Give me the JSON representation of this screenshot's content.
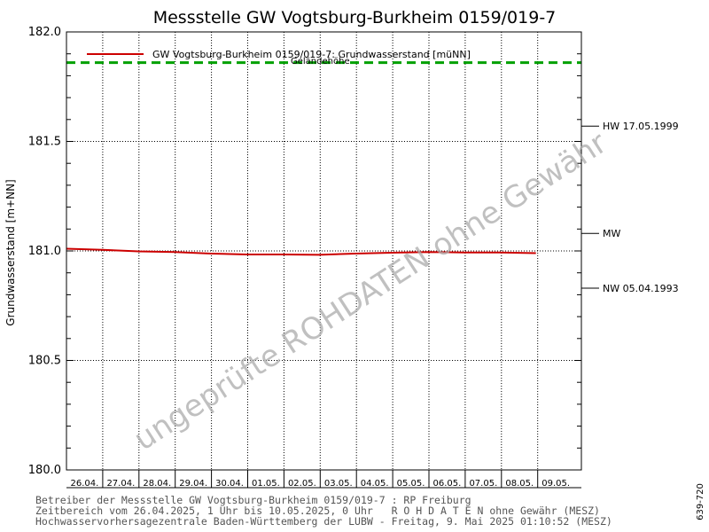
{
  "chart_data": {
    "type": "line",
    "title": "Messstelle GW Vogtsburg-Burkheim 0159/019-7",
    "ylabel": "Grundwasserstand [m+NN]",
    "ylim": [
      180.0,
      182.0
    ],
    "yticks": [
      "182.0",
      "181.5",
      "181.0",
      "180.5",
      "180.0"
    ],
    "ytick_values": [
      182.0,
      181.5,
      181.0,
      180.5,
      180.0
    ],
    "x_days": [
      "26.04.",
      "27.04.",
      "28.04.",
      "29.04.",
      "30.04.",
      "01.05.",
      "02.05.",
      "03.05.",
      "04.05.",
      "05.05.",
      "06.05.",
      "07.05.",
      "08.05.",
      "09.05."
    ],
    "series": [
      {
        "name": "GW Vogtsburg-Burkheim 0159/019-7: Grundwasserstand [müNN]",
        "color": "#cc0000",
        "x": [
          "26.04.2025",
          "27.04.2025",
          "28.04.2025",
          "29.04.2025",
          "30.04.2025",
          "01.05.2025",
          "02.05.2025",
          "03.05.2025",
          "04.05.2025",
          "05.05.2025",
          "06.05.2025",
          "07.05.2025",
          "08.05.2025",
          "09.05.2025"
        ],
        "values": [
          181.01,
          181.005,
          180.998,
          180.995,
          180.988,
          180.984,
          180.984,
          180.982,
          180.988,
          180.992,
          180.995,
          180.993,
          180.993,
          180.99
        ]
      }
    ],
    "reference_lines": [
      {
        "label": "Geländehöhe",
        "value": 181.86,
        "color": "#00a000"
      }
    ],
    "right_markers": [
      {
        "label": "HW 17.05.1999",
        "value": 181.57
      },
      {
        "label": "MW",
        "value": 181.08
      },
      {
        "label": "NW 05.04.1993",
        "value": 180.83
      }
    ],
    "watermark": "ungeprüfte ROHDATEN ohne Gewähr",
    "grid": true,
    "legend_position": "top-left"
  },
  "footer": {
    "line1": "Betreiber der Messstelle GW Vogtsburg-Burkheim 0159/019-7 : RP Freiburg",
    "line2": "Zeitbereich vom 26.04.2025, 1 Uhr bis 10.05.2025, 0 Uhr   R O H D A T E N ohne Gewähr (MESZ)",
    "line3": "Hochwasservorhersagezentrale Baden-Württemberg der LUBW - Freitag, 9. Mai 2025 01:10:52 (MESZ)"
  },
  "side_code": "639-720"
}
